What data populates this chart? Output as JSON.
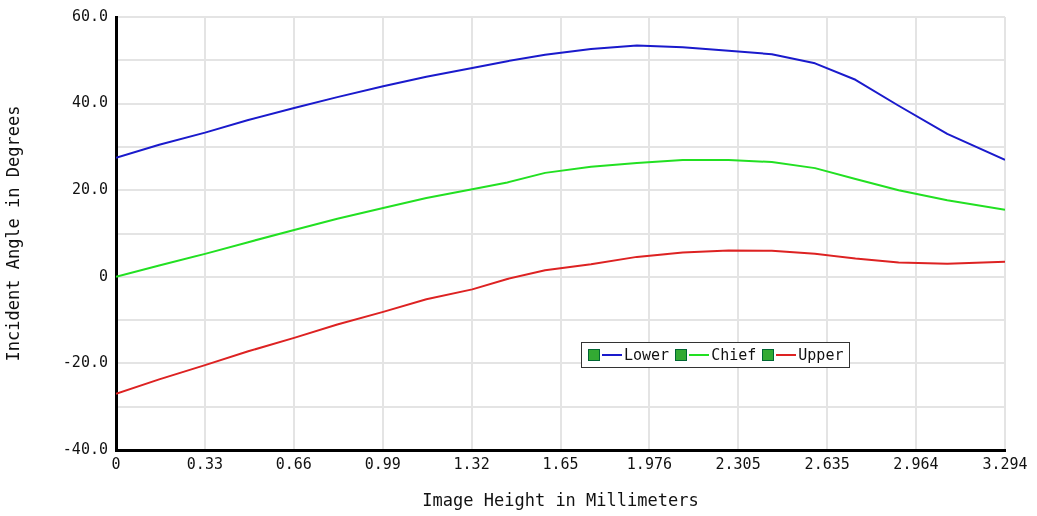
{
  "chart_data": {
    "type": "line",
    "xlabel": "Image Height in Millimeters",
    "ylabel": "Incident Angle in Degrees",
    "xlim": [
      0,
      3.294
    ],
    "xticks": [
      0,
      {
        "value": 0.3294,
        "label": "0.33"
      },
      {
        "value": 0.6588,
        "label": "0.66"
      },
      {
        "value": 0.9882,
        "label": "0.99"
      },
      {
        "value": 1.3176,
        "label": "1.32"
      },
      {
        "value": 1.647,
        "label": "1.65"
      },
      {
        "value": 1.9764,
        "label": "1.976"
      },
      {
        "value": 2.305,
        "label": "2.305"
      },
      {
        "value": 2.6352,
        "label": "2.635"
      },
      {
        "value": 2.964,
        "label": "2.964"
      },
      3.294
    ],
    "ylim": [
      -40,
      60
    ],
    "yticks": [
      {
        "value": -40,
        "label": "-40.0"
      },
      {
        "value": -30,
        "label": null
      },
      {
        "value": -20,
        "label": "-20.0"
      },
      {
        "value": -10,
        "label": null
      },
      0,
      {
        "value": 10,
        "label": null
      },
      {
        "value": 20,
        "label": "20.0"
      },
      {
        "value": 30,
        "label": null
      },
      {
        "value": 40,
        "label": "40.0"
      },
      {
        "value": 50,
        "label": null
      },
      {
        "value": 60,
        "label": "60.0"
      }
    ],
    "x": [
      0,
      0.16,
      0.33,
      0.49,
      0.66,
      0.82,
      0.99,
      1.15,
      1.32,
      1.45,
      1.59,
      1.76,
      1.93,
      2.1,
      2.27,
      2.43,
      2.59,
      2.74,
      2.9,
      3.08,
      3.294
    ],
    "series": [
      {
        "name": "Lower",
        "color": "#1a1acc",
        "values": [
          27.5,
          30.5,
          33.3,
          36.2,
          39,
          41.5,
          44,
          46.2,
          48.2,
          49.8,
          51.3,
          52.6,
          53.4,
          53,
          52.2,
          51.4,
          49.3,
          45.5,
          39.5,
          33,
          27
        ]
      },
      {
        "name": "Chief",
        "color": "#22e022",
        "values": [
          0,
          2.6,
          5.3,
          8,
          10.8,
          13.4,
          15.9,
          18.2,
          20.2,
          21.8,
          24,
          25.4,
          26.3,
          27,
          27,
          26.5,
          25.1,
          22.6,
          20,
          17.7,
          15.5
        ]
      },
      {
        "name": "Upper",
        "color": "#dd2222",
        "values": [
          -27,
          -23.7,
          -20.4,
          -17.2,
          -14.1,
          -11,
          -8.1,
          -5.2,
          -2.9,
          -0.5,
          1.5,
          2.9,
          4.6,
          5.6,
          6.1,
          6,
          5.3,
          4.2,
          3.3,
          3,
          3.5
        ]
      }
    ],
    "grid": true,
    "legend": "bottom",
    "marker": "none",
    "line_style": "solid"
  }
}
